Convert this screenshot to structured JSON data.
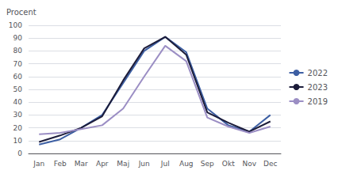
{
  "chart_data": {
    "type": "line",
    "ylabel": "Procent",
    "categories": [
      "Jan",
      "Feb",
      "Mar",
      "Apr",
      "Maj",
      "Jun",
      "Jul",
      "Aug",
      "Sep",
      "Okt",
      "Nov",
      "Dec"
    ],
    "series": [
      {
        "name": "2022",
        "color": "#3D5FA3",
        "values": [
          7,
          11,
          20,
          30,
          55,
          80,
          91,
          79,
          35,
          22,
          17,
          30
        ]
      },
      {
        "name": "2023",
        "color": "#1C1C3A",
        "values": [
          9,
          14,
          20,
          29,
          57,
          82,
          91,
          77,
          32,
          24,
          17,
          25
        ]
      },
      {
        "name": "2019",
        "color": "#9B8EC4",
        "values": [
          15,
          16,
          19,
          22,
          35,
          60,
          84,
          72,
          28,
          21,
          16,
          21
        ]
      }
    ],
    "ylim": [
      0,
      100
    ],
    "yticks": [
      0,
      10,
      20,
      30,
      40,
      50,
      60,
      70,
      80,
      90,
      100
    ],
    "grid": true,
    "legend": "right"
  }
}
